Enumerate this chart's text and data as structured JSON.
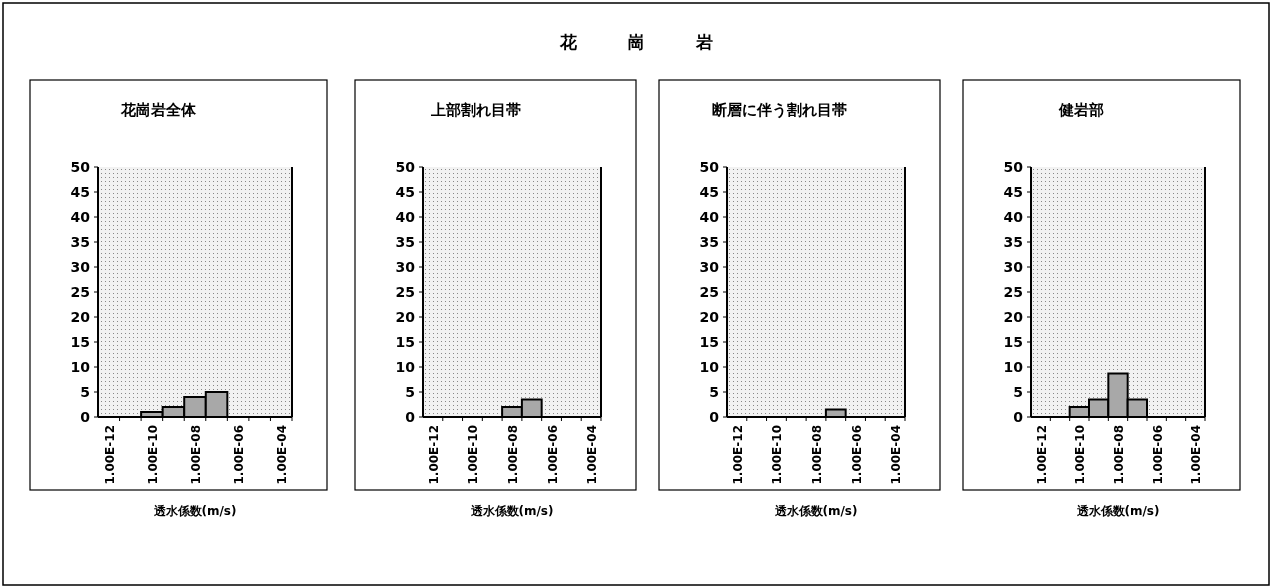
{
  "chart_data": [
    {
      "type": "bar",
      "title": "花崗岩全体",
      "annotations": [
        "花　　　崗　　　岩"
      ],
      "xlabel": "透水係数(m/s)",
      "categories": [
        "1.00E-12",
        null,
        "1.00E-10",
        null,
        "1.00E-08",
        null,
        "1.00E-06",
        null,
        "1.00E-04"
      ],
      "ylim": [
        0,
        50
      ],
      "yticks": [
        0,
        5,
        10,
        15,
        20,
        25,
        30,
        35,
        40,
        45,
        50
      ],
      "grid": false,
      "series": [
        {
          "color": "#a8a8a8",
          "values": [
            0,
            0,
            1,
            2,
            4,
            5,
            0,
            0,
            0
          ]
        }
      ]
    },
    {
      "type": "bar",
      "title": "上部割れ目帯",
      "xlabel": "透水係数(m/s)",
      "categories": [
        "1.00E-12",
        null,
        "1.00E-10",
        null,
        "1.00E-08",
        null,
        "1.00E-06",
        null,
        "1.00E-04"
      ],
      "ylim": [
        0,
        50
      ],
      "yticks": [
        0,
        5,
        10,
        15,
        20,
        25,
        30,
        35,
        40,
        45,
        50
      ],
      "grid": false,
      "series": [
        {
          "color": "#a8a8a8",
          "values": [
            0,
            0,
            0,
            0,
            2,
            3.5,
            0,
            0,
            0
          ]
        }
      ]
    },
    {
      "type": "bar",
      "title": "断層に伴う割れ目帯",
      "xlabel": "透水係数(m/s)",
      "categories": [
        "1.00E-12",
        null,
        "1.00E-10",
        null,
        "1.00E-08",
        null,
        "1.00E-06",
        null,
        "1.00E-04"
      ],
      "ylim": [
        0,
        50
      ],
      "yticks": [
        0,
        5,
        10,
        15,
        20,
        25,
        30,
        35,
        40,
        45,
        50
      ],
      "grid": false,
      "series": [
        {
          "color": "#a8a8a8",
          "values": [
            0,
            0,
            0,
            0,
            0,
            1.5,
            0,
            0,
            0
          ]
        }
      ]
    },
    {
      "type": "bar",
      "title": "健岩部",
      "xlabel": "透水係数(m/s)",
      "categories": [
        "1.00E-12",
        null,
        "1.00E-10",
        null,
        "1.00E-08",
        null,
        "1.00E-06",
        null,
        "1.00E-04"
      ],
      "ylim": [
        0,
        50
      ],
      "yticks": [
        0,
        5,
        10,
        15,
        20,
        25,
        30,
        35,
        40,
        45,
        50
      ],
      "grid": false,
      "series": [
        {
          "color": "#a8a8a8",
          "values": [
            0,
            0,
            2,
            3.5,
            8.7,
            3.5,
            0,
            0,
            0
          ]
        }
      ]
    }
  ]
}
